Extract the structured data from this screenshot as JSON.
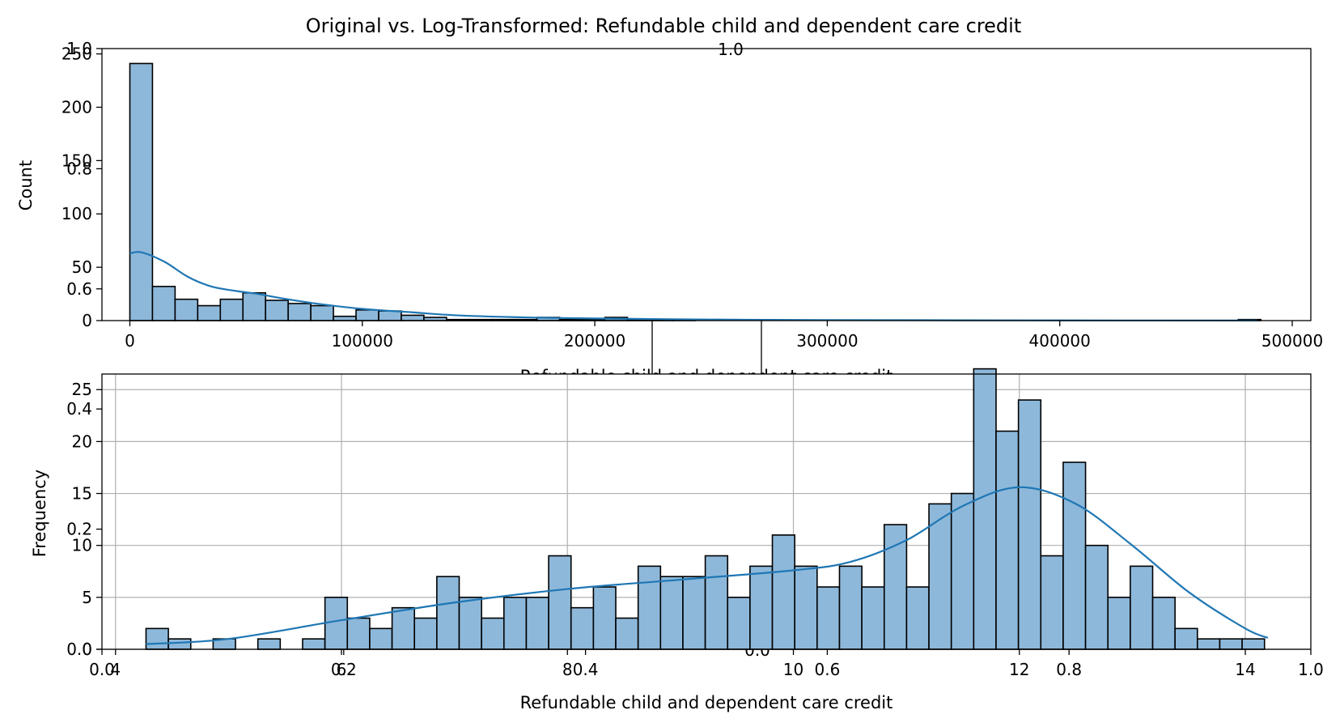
{
  "chart_data": [
    {
      "type": "bar",
      "title": "Original vs. Log-Transformed: Refundable child and dependent care credit",
      "xlabel": "Refundable child and dependent care credit",
      "ylabel": "Count",
      "xlim": [
        -12000,
        508000
      ],
      "ylim": [
        0,
        255
      ],
      "grid": false,
      "xticks": [
        0,
        100000,
        200000,
        300000,
        400000,
        500000
      ],
      "xtick_labels": [
        "0",
        "100000",
        "200000",
        "300000",
        "400000",
        "500000"
      ],
      "yticks": [
        0,
        50,
        100,
        150,
        200,
        250
      ],
      "ytick_labels": [
        "0",
        "50",
        "100",
        "150",
        "200",
        "250"
      ],
      "bin_start": 0,
      "bin_width": 9730,
      "values": [
        241,
        32,
        20,
        14,
        20,
        26,
        19,
        16,
        14,
        4,
        10,
        9,
        5,
        3,
        1,
        1,
        1,
        1,
        3,
        1,
        1,
        3,
        1,
        1,
        1,
        0,
        0,
        0,
        0,
        0,
        0,
        0,
        0,
        0,
        0,
        0,
        0,
        0,
        0,
        0,
        0,
        0,
        0,
        0,
        0,
        0,
        0,
        0,
        0,
        1
      ],
      "kde_x": [
        0,
        5000,
        15000,
        25000,
        35000,
        45000,
        55000,
        65000,
        80000,
        100000,
        120000,
        140000,
        170000,
        200000,
        250000,
        300000,
        400000,
        485000
      ],
      "kde_y": [
        63,
        64,
        55,
        41,
        32,
        28,
        25,
        21,
        16,
        11,
        8,
        5,
        3,
        2,
        1,
        0.5,
        0.2,
        0.1
      ],
      "colors": {
        "bar_fill": "#8db8da",
        "bar_edge": "#000000",
        "kde": "#1f77b4"
      }
    },
    {
      "type": "bar",
      "xlabel": "Refundable child and dependent care credit",
      "ylabel": "Frequency",
      "xlim": [
        3.88,
        14.58
      ],
      "ylim": [
        0,
        26.5
      ],
      "grid": true,
      "xticks": [
        4,
        6,
        8,
        10,
        12,
        14
      ],
      "xtick_labels": [
        "4",
        "6",
        "8",
        "10",
        "12",
        "14"
      ],
      "yticks": [
        0,
        5,
        10,
        15,
        20,
        25
      ],
      "ytick_labels": [
        "0",
        "5",
        "10",
        "15",
        "20",
        "25"
      ],
      "bin_start": 4.27,
      "bin_width": 0.198,
      "values": [
        2,
        1,
        0,
        1,
        0,
        1,
        0,
        1,
        5,
        3,
        2,
        4,
        3,
        7,
        5,
        3,
        5,
        5,
        9,
        4,
        6,
        3,
        8,
        7,
        7,
        9,
        5,
        8,
        11,
        8,
        6,
        8,
        6,
        12,
        6,
        14,
        15,
        27,
        21,
        24,
        9,
        18,
        10,
        5,
        8,
        5,
        2,
        1,
        1,
        1
      ],
      "kde_x": [
        4.27,
        5.0,
        6.0,
        7.0,
        8.0,
        9.0,
        10.0,
        10.5,
        11.0,
        11.5,
        12.0,
        12.5,
        13.0,
        13.5,
        14.0,
        14.2
      ],
      "kde_y": [
        0.5,
        1.0,
        2.8,
        4.5,
        5.8,
        6.7,
        7.6,
        8.4,
        10.5,
        13.8,
        15.6,
        14.0,
        10.0,
        5.5,
        2.0,
        1.1
      ],
      "colors": {
        "bar_fill": "#8db8da",
        "bar_edge": "#000000",
        "kde": "#1f77b4",
        "grid": "#b0b0b0"
      }
    }
  ],
  "overlay_axis": {
    "ticks": [
      0.0,
      0.2,
      0.4,
      0.6,
      0.8,
      1.0
    ],
    "labels": [
      "0.0",
      "0.2",
      "0.4",
      "0.6",
      "0.8",
      "1.0"
    ]
  }
}
